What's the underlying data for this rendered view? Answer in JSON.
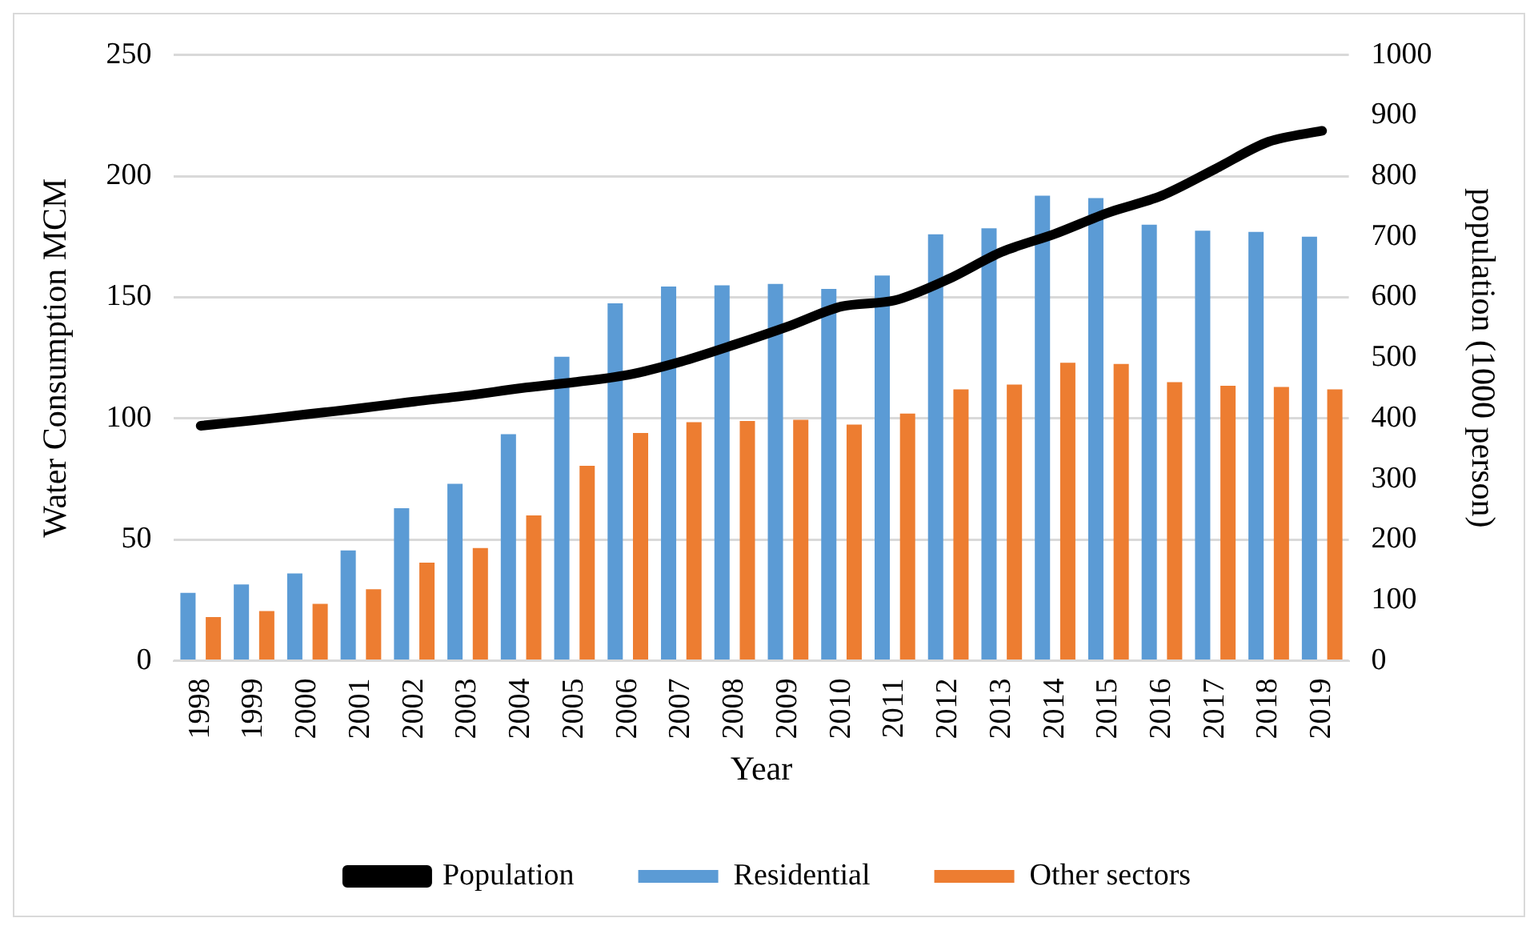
{
  "chart_data": {
    "type": "bar",
    "xlabel": "Year",
    "ylabel": "Water Consumption MCM",
    "y2label": "population (1000 person)",
    "categories": [
      "1998",
      "1999",
      "2000",
      "2001",
      "2002",
      "2003",
      "2004",
      "2005",
      "2006",
      "2007",
      "2008",
      "2009",
      "2010",
      "2011",
      "2012",
      "2013",
      "2014",
      "2015",
      "2016",
      "2017",
      "2018",
      "2019"
    ],
    "series": [
      {
        "name": "Residential",
        "color": "#5b9bd5",
        "values": [
          28,
          31.5,
          36,
          45.5,
          63,
          73,
          93.5,
          125.5,
          147.5,
          154.5,
          155,
          155.5,
          153.5,
          159,
          176,
          178.5,
          192,
          191,
          180,
          177.5,
          177,
          175
        ]
      },
      {
        "name": "Other sectors",
        "color": "#ed7d31",
        "values": [
          18,
          20.5,
          23.5,
          29.5,
          40.5,
          46.5,
          60,
          80.5,
          94,
          98.5,
          99,
          99.5,
          97.5,
          102,
          112,
          114,
          123,
          122.5,
          115,
          113.5,
          113,
          112
        ]
      },
      {
        "name": "Population",
        "type": "line",
        "axis": "y2",
        "color": "#000000",
        "values": [
          388,
          397,
          407,
          417,
          428,
          438,
          450,
          460,
          472,
          494,
          522,
          552,
          585,
          595,
          630,
          675,
          705,
          740,
          768,
          812,
          857,
          875
        ]
      }
    ],
    "ylim": [
      0,
      250
    ],
    "yticks": [
      0,
      50,
      100,
      150,
      200,
      250
    ],
    "y2lim": [
      0,
      1000
    ],
    "y2ticks": [
      0,
      100,
      200,
      300,
      400,
      500,
      600,
      700,
      800,
      900,
      1000
    ],
    "grid": "y",
    "legend": "bottom",
    "marker": "none",
    "line_style": "solid"
  }
}
